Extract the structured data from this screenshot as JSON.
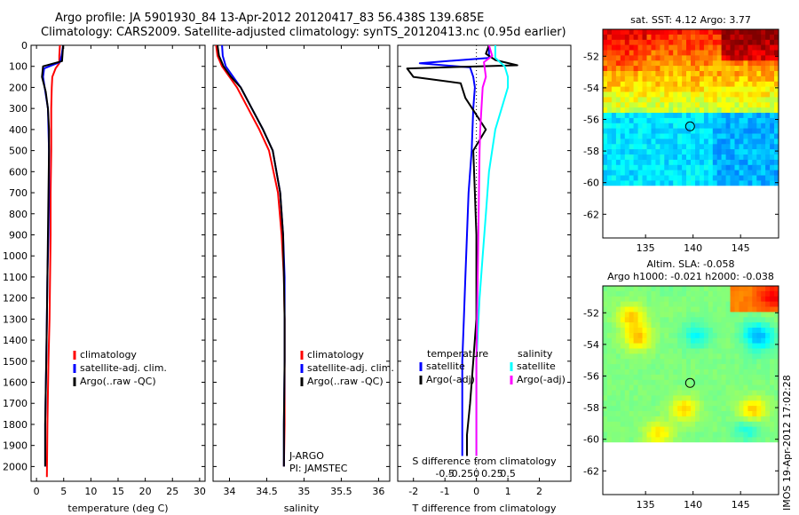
{
  "header": {
    "line1": "Argo profile: JA 5901930_84 13-Apr-2012 20120417_83 56.438S 139.685E",
    "line2": "Climatology: CARS2009. Satellite-adjusted climatology: synTS_20120413.nc (0.95d earlier)"
  },
  "side_stamp": "IMOS 19-Apr-2012 17:02:28",
  "colors": {
    "climatology": "#ff0000",
    "satellite": "#0000ff",
    "argo": "#000000",
    "salinity_satellite": "#00ffff",
    "salinity_argo": "#ff00ff"
  },
  "chart_data": [
    {
      "type": "line",
      "xlabel": "temperature (deg C)",
      "ylabel": "",
      "xlim": [
        -1,
        31
      ],
      "ylim": [
        2070,
        0
      ],
      "xticks": [
        "0",
        "5",
        "10",
        "15",
        "20",
        "25",
        "30"
      ],
      "yticks": [
        "0",
        "100",
        "200",
        "300",
        "400",
        "500",
        "600",
        "700",
        "800",
        "900",
        "1000",
        "1100",
        "1200",
        "1300",
        "1400",
        "1500",
        "1600",
        "1700",
        "1800",
        "1900",
        "2000"
      ],
      "legend": [
        "climatology",
        "satellite-adj. clim.",
        "Argo(..raw -QC)"
      ],
      "series": [
        {
          "name": "climatology",
          "x": [
            4.3,
            4.2,
            4.2,
            3.5,
            2.9,
            2.8,
            2.7,
            2.7,
            2.6,
            2.6,
            2.5,
            2.4,
            2.2,
            2.0,
            1.9
          ],
          "y": [
            0,
            50,
            85,
            110,
            150,
            200,
            300,
            500,
            700,
            900,
            1100,
            1300,
            1500,
            1800,
            2050
          ]
        },
        {
          "name": "satellite-adj. clim.",
          "x": [
            4.9,
            4.6,
            4.3,
            1.4,
            1.2,
            1.5,
            2.1,
            2.3,
            2.3,
            2.2,
            2.0,
            1.9,
            1.8,
            1.6,
            1.6
          ],
          "y": [
            0,
            50,
            80,
            110,
            150,
            200,
            300,
            500,
            700,
            900,
            1100,
            1300,
            1500,
            1800,
            2000
          ]
        },
        {
          "name": "Argo(..raw -QC)",
          "x": [
            4.9,
            4.7,
            1.2,
            1.0,
            1.7,
            2.1,
            2.3,
            2.3,
            2.2,
            2.1,
            2.0,
            1.9,
            1.8,
            1.6,
            1.6
          ],
          "y": [
            0,
            75,
            100,
            150,
            220,
            300,
            400,
            500,
            700,
            900,
            1100,
            1300,
            1500,
            1800,
            2000
          ]
        }
      ]
    },
    {
      "type": "line",
      "xlabel": "salinity",
      "ylabel": "",
      "xlim": [
        33.78,
        36.15
      ],
      "ylim": [
        2070,
        0
      ],
      "xticks": [
        "34",
        "34.5",
        "35",
        "35.5",
        "36"
      ],
      "legend": [
        "climatology",
        "satellite-adj. clim.",
        "Argo(..raw -QC)"
      ],
      "annotations": [
        "J-ARGO",
        "PI: JAMSTEC"
      ],
      "series": [
        {
          "name": "climatology",
          "x": [
            33.82,
            33.84,
            33.9,
            34.0,
            34.1,
            34.25,
            34.4,
            34.53,
            34.65,
            34.7,
            34.73,
            34.74,
            34.74,
            34.74,
            34.73
          ],
          "y": [
            0,
            50,
            100,
            150,
            200,
            300,
            400,
            500,
            700,
            900,
            1100,
            1300,
            1500,
            1800,
            2000
          ]
        },
        {
          "name": "satellite-adj. clim.",
          "x": [
            33.9,
            33.91,
            33.95,
            34.05,
            34.15,
            34.3,
            34.45,
            34.58,
            34.68,
            34.72,
            34.74,
            34.74,
            34.74,
            34.73,
            34.73
          ],
          "y": [
            0,
            50,
            100,
            150,
            200,
            300,
            400,
            500,
            700,
            900,
            1100,
            1300,
            1500,
            1800,
            2000
          ]
        },
        {
          "name": "Argo(..raw -QC)",
          "x": [
            33.84,
            33.86,
            33.92,
            34.02,
            34.15,
            34.3,
            34.45,
            34.58,
            34.68,
            34.72,
            34.73,
            34.74,
            34.74,
            34.73,
            34.73
          ],
          "y": [
            0,
            50,
            100,
            150,
            200,
            300,
            400,
            500,
            700,
            900,
            1100,
            1300,
            1500,
            1800,
            2000
          ]
        }
      ]
    },
    {
      "type": "line",
      "xlabel": "T difference from climatology",
      "xlabel_top": "S difference from climatology",
      "xlim": [
        -2.5,
        3
      ],
      "ylim": [
        2070,
        0
      ],
      "xticks": [
        "-2",
        "-1",
        "0",
        "1",
        "2"
      ],
      "xticks_top": [
        "-0.5",
        "-0.25",
        "0",
        "0.25",
        "0.5"
      ],
      "legend_temperature_title": "temperature",
      "legend_salinity_title": "salinity",
      "legend": [
        "satellite",
        "Argo(-adj)",
        "satellite",
        "Argo(-adj)"
      ],
      "series": [
        {
          "name": "satellite",
          "x": [
            0.4,
            0.4,
            -1.8,
            -0.2,
            -0.1,
            -0.05,
            -0.1,
            -0.15,
            -0.25,
            -0.3,
            -0.35,
            -0.4,
            -0.45,
            -0.45,
            -0.45
          ],
          "y": [
            0,
            60,
            85,
            105,
            150,
            200,
            300,
            500,
            700,
            900,
            1100,
            1300,
            1500,
            1800,
            1950
          ]
        },
        {
          "name": "Argo(-adj)",
          "x": [
            0.4,
            0.3,
            0.6,
            1.3,
            -2.2,
            -2.0,
            -0.5,
            -0.35,
            0.3,
            -0.1,
            -0.05,
            0.0,
            0.0,
            0.0,
            -0.1,
            -0.2,
            -0.3,
            -0.3
          ],
          "y": [
            0,
            40,
            70,
            95,
            110,
            150,
            180,
            250,
            400,
            500,
            700,
            900,
            1100,
            1300,
            1500,
            1700,
            1850,
            1950
          ]
        },
        {
          "name": "satellite",
          "x": [
            0.3,
            0.3,
            0.45,
            0.5,
            0.5,
            0.4,
            0.3,
            0.2,
            0.15,
            0.1,
            0.05,
            0.0,
            0.0
          ],
          "y": [
            0,
            60,
            100,
            150,
            200,
            300,
            400,
            600,
            800,
            1000,
            1200,
            1500,
            1950
          ]
        },
        {
          "name": "Argo(-adj)",
          "x": [
            0.2,
            0.25,
            0.12,
            0.15,
            0.1,
            0.08,
            0.06,
            0.05,
            0.04,
            0.03,
            0.02,
            0.0,
            0.0
          ],
          "y": [
            0,
            50,
            80,
            150,
            200,
            300,
            400,
            500,
            700,
            900,
            1100,
            1500,
            1950
          ]
        }
      ]
    },
    {
      "type": "heatmap",
      "title": "sat. SST: 4.12  Argo: 3.77",
      "xticks": [
        "135",
        "140",
        "145"
      ],
      "yticks": [
        "-52",
        "-54",
        "-56",
        "-58",
        "-60",
        "-62"
      ],
      "xlim": [
        130.5,
        149
      ],
      "ylim": [
        -63.5,
        -50.3
      ]
    },
    {
      "type": "heatmap",
      "title": "Altim. SLA: -0.058",
      "subtitle": "Argo h1000: -0.021  h2000: -0.038",
      "xticks": [
        "135",
        "140",
        "145"
      ],
      "yticks": [
        "-52",
        "-54",
        "-56",
        "-58",
        "-60",
        "-62"
      ],
      "xlim": [
        130.5,
        149
      ],
      "ylim": [
        -63.5,
        -50.3
      ]
    }
  ]
}
